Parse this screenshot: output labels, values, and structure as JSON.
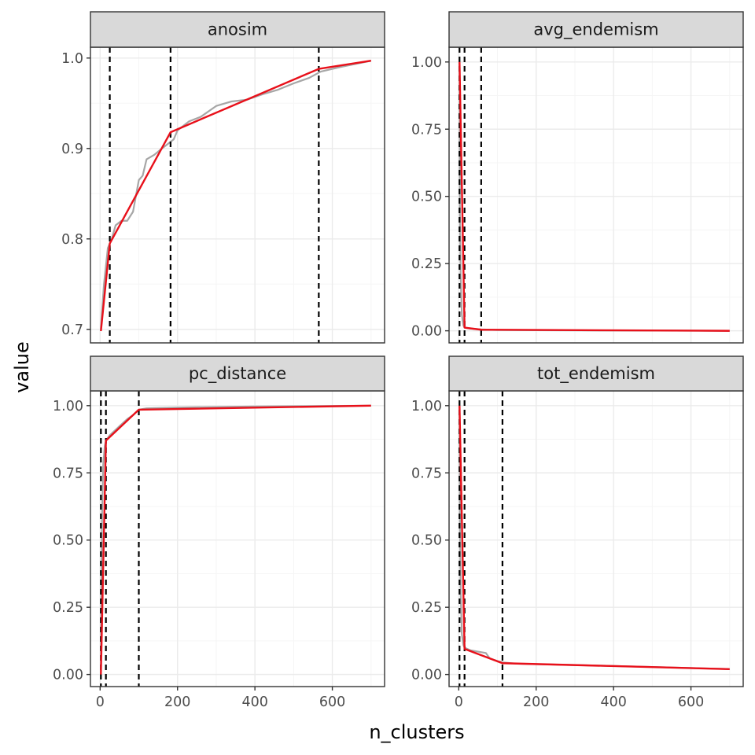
{
  "chart_data": {
    "type": "line",
    "xlabel": "n_clusters",
    "ylabel": "value",
    "xlim": [
      -25,
      735
    ],
    "x_ticks": [
      0,
      200,
      400,
      600
    ],
    "x_tick_labels": [
      "0",
      "200",
      "400",
      "600"
    ],
    "grid": true,
    "legend": "none",
    "colors": {
      "observed": "#a6a6a6",
      "fitted": "#e8101a",
      "cutoff": "#000000",
      "strip_fill": "#d9d9d9",
      "grid_major": "#ebebeb",
      "grid_minor": "#f5f5f5",
      "panel_border": "#333333"
    },
    "panels": [
      {
        "title": "anosim",
        "ylim": [
          0.685,
          1.012
        ],
        "y_ticks": [
          0.7,
          0.8,
          0.9,
          1.0
        ],
        "y_tick_labels": [
          "0.7",
          "0.8",
          "0.9",
          "1.0"
        ],
        "cutoffs": [
          25,
          182,
          565
        ],
        "observed": [
          [
            2,
            0.7
          ],
          [
            5,
            0.72
          ],
          [
            10,
            0.75
          ],
          [
            15,
            0.77
          ],
          [
            20,
            0.79
          ],
          [
            30,
            0.8
          ],
          [
            40,
            0.815
          ],
          [
            55,
            0.82
          ],
          [
            70,
            0.82
          ],
          [
            85,
            0.83
          ],
          [
            100,
            0.865
          ],
          [
            110,
            0.87
          ],
          [
            120,
            0.888
          ],
          [
            140,
            0.893
          ],
          [
            160,
            0.9
          ],
          [
            175,
            0.905
          ],
          [
            190,
            0.91
          ],
          [
            200,
            0.92
          ],
          [
            230,
            0.93
          ],
          [
            260,
            0.935
          ],
          [
            300,
            0.947
          ],
          [
            340,
            0.952
          ],
          [
            380,
            0.954
          ],
          [
            420,
            0.96
          ],
          [
            460,
            0.965
          ],
          [
            500,
            0.972
          ],
          [
            540,
            0.978
          ],
          [
            570,
            0.985
          ],
          [
            620,
            0.99
          ],
          [
            700,
            0.997
          ]
        ],
        "fitted": [
          [
            2,
            0.698
          ],
          [
            25,
            0.795
          ],
          [
            182,
            0.918
          ],
          [
            565,
            0.988
          ],
          [
            700,
            0.997
          ]
        ]
      },
      {
        "title": "avg_endemism",
        "ylim": [
          -0.045,
          1.055
        ],
        "y_ticks": [
          0,
          0.25,
          0.5,
          0.75,
          1.0
        ],
        "y_tick_labels": [
          "0.00",
          "0.25",
          "0.50",
          "0.75",
          "1.00"
        ],
        "cutoffs": [
          2,
          15,
          58
        ],
        "observed": [
          [
            2,
            1.0
          ],
          [
            3,
            0.45
          ],
          [
            5,
            0.2
          ],
          [
            8,
            0.06
          ],
          [
            12,
            0.02
          ],
          [
            15,
            0.012
          ],
          [
            30,
            0.008
          ],
          [
            58,
            0.005
          ],
          [
            100,
            0.003
          ],
          [
            200,
            0.002
          ],
          [
            400,
            0.001
          ],
          [
            700,
            0.0
          ]
        ],
        "fitted": [
          [
            2,
            1.0
          ],
          [
            15,
            0.012
          ],
          [
            58,
            0.004
          ],
          [
            700,
            0.0
          ]
        ]
      },
      {
        "title": "pc_distance",
        "ylim": [
          -0.045,
          1.055
        ],
        "y_ticks": [
          0,
          0.25,
          0.5,
          0.75,
          1.0
        ],
        "y_tick_labels": [
          "0.00",
          "0.25",
          "0.50",
          "0.75",
          "1.00"
        ],
        "cutoffs": [
          2,
          15,
          100
        ],
        "observed": [
          [
            2,
            0.0
          ],
          [
            3,
            0.3
          ],
          [
            5,
            0.6
          ],
          [
            8,
            0.78
          ],
          [
            12,
            0.85
          ],
          [
            15,
            0.87
          ],
          [
            25,
            0.89
          ],
          [
            40,
            0.91
          ],
          [
            55,
            0.93
          ],
          [
            70,
            0.95
          ],
          [
            85,
            0.965
          ],
          [
            100,
            0.985
          ],
          [
            120,
            0.99
          ],
          [
            200,
            0.993
          ],
          [
            400,
            0.997
          ],
          [
            700,
            1.0
          ]
        ],
        "fitted": [
          [
            2,
            0.0
          ],
          [
            15,
            0.87
          ],
          [
            100,
            0.985
          ],
          [
            700,
            1.0
          ]
        ]
      },
      {
        "title": "tot_endemism",
        "ylim": [
          -0.045,
          1.055
        ],
        "y_ticks": [
          0,
          0.25,
          0.5,
          0.75,
          1.0
        ],
        "y_tick_labels": [
          "0.00",
          "0.25",
          "0.50",
          "0.75",
          "1.00"
        ],
        "cutoffs": [
          2,
          15,
          113
        ],
        "observed": [
          [
            2,
            1.0
          ],
          [
            3,
            0.6
          ],
          [
            5,
            0.3
          ],
          [
            8,
            0.15
          ],
          [
            12,
            0.11
          ],
          [
            15,
            0.1
          ],
          [
            30,
            0.09
          ],
          [
            50,
            0.085
          ],
          [
            70,
            0.08
          ],
          [
            80,
            0.06
          ],
          [
            100,
            0.05
          ],
          [
            113,
            0.045
          ],
          [
            150,
            0.04
          ],
          [
            300,
            0.035
          ],
          [
            500,
            0.028
          ],
          [
            700,
            0.02
          ]
        ],
        "fitted": [
          [
            2,
            1.0
          ],
          [
            15,
            0.095
          ],
          [
            113,
            0.042
          ],
          [
            700,
            0.02
          ]
        ]
      }
    ]
  }
}
